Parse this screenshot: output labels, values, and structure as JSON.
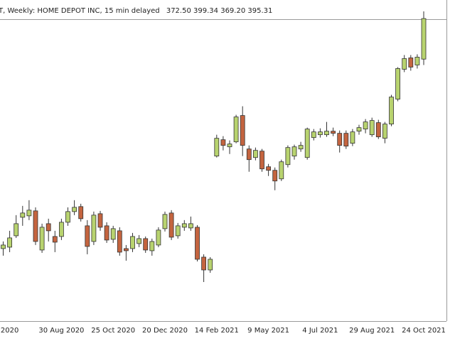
{
  "header": {
    "title": "T, Weekly:  HOME DEPOT INC, 15 min delayed",
    "ohlc": [
      "372.50",
      "399.34",
      "369.20",
      "395.31"
    ]
  },
  "chart_data": {
    "type": "candlestick",
    "categories": [
      null,
      "2020",
      null,
      null,
      null,
      null,
      null,
      null,
      null,
      "30 Aug 2020",
      null,
      null,
      null,
      null,
      null,
      null,
      null,
      "25 Oct 2020",
      null,
      null,
      null,
      null,
      null,
      null,
      null,
      "20 Dec 2020",
      null,
      null,
      null,
      null,
      null,
      null,
      null,
      "14 Feb 2021",
      null,
      null,
      null,
      null,
      null,
      null,
      null,
      "9 May 2021",
      null,
      null,
      null,
      null,
      null,
      null,
      null,
      "4 Jul 2021",
      null,
      null,
      null,
      null,
      null,
      null,
      null,
      "29 Aug 2021",
      null,
      null,
      null,
      null,
      null,
      null,
      null,
      "24 Oct 2021"
    ],
    "up_color": "#b8d36f",
    "down_color": "#c4643f",
    "outline_color": "#333333",
    "open": [
      266,
      266.8,
      273.2,
      283.6,
      284.4,
      287.2,
      265.2,
      280,
      272.8,
      272.8,
      280.8,
      286.8,
      289.6,
      278.8,
      270,
      285.6,
      278.8,
      271.2,
      276,
      266,
      266,
      268.8,
      271.6,
      264.8,
      268,
      277.2,
      286,
      273.2,
      278,
      277.6,
      278,
      261.2,
      254,
      318,
      327.2,
      323.2,
      326,
      340.8,
      322,
      317.2,
      320.8,
      312,
      310,
      305.2,
      313.2,
      318,
      322,
      317.2,
      328.4,
      330,
      330,
      332,
      330.8,
      330.8,
      325.2,
      332,
      333.2,
      330,
      336.8,
      328,
      336,
      350,
      366.8,
      373.2,
      369.2,
      372.5
    ],
    "high": [
      270,
      276,
      284.8,
      290,
      293.2,
      289.2,
      280,
      282.8,
      276,
      282.8,
      289.2,
      293.2,
      291.2,
      282,
      286.8,
      287.2,
      280.8,
      278.8,
      278,
      268,
      274.8,
      273.6,
      272.8,
      271.6,
      278,
      286.8,
      287.6,
      280.4,
      282,
      284,
      279.2,
      262.8,
      261.2,
      330,
      329.2,
      326.8,
      341.2,
      346,
      324,
      322.8,
      322,
      313.6,
      311.6,
      316,
      324,
      324.4,
      326,
      334,
      333.2,
      333.6,
      337.2,
      334,
      332.4,
      332.4,
      333.2,
      335.6,
      338.8,
      339.6,
      338.4,
      337.2,
      352.4,
      368,
      374.8,
      374.8,
      375.2,
      399.34
    ],
    "low": [
      262,
      264,
      272,
      278.8,
      282,
      268,
      263.6,
      270,
      264,
      270.8,
      278.8,
      284.8,
      281.2,
      262.8,
      268,
      276,
      269.2,
      269.2,
      262,
      259.2,
      264,
      266.8,
      263.6,
      262,
      266.8,
      275.6,
      270.8,
      271.6,
      276,
      276,
      258.8,
      247.2,
      252.4,
      317.2,
      321.2,
      319.2,
      325.2,
      318,
      309.2,
      315.6,
      309.2,
      306.8,
      298.8,
      304,
      311.6,
      316,
      320.4,
      316,
      326.8,
      328.4,
      328.8,
      329.2,
      320,
      322,
      323.6,
      330,
      330.8,
      328.8,
      327.6,
      325.2,
      334.8,
      348.8,
      365.2,
      366,
      367.2,
      369.2
    ],
    "close": [
      268,
      272,
      280,
      286,
      287.6,
      270,
      278,
      276,
      269.6,
      280.8,
      286.8,
      289.2,
      282.8,
      267.2,
      284.8,
      278,
      270.8,
      277.2,
      264,
      264.8,
      272.8,
      271.6,
      265.2,
      270,
      276.4,
      285.2,
      272.4,
      278.8,
      280,
      280,
      260,
      254,
      260,
      328,
      324,
      324.8,
      340,
      324,
      316,
      321.2,
      310.8,
      310,
      304,
      314.8,
      322.8,
      323.2,
      324,
      333.2,
      331.6,
      331.6,
      332,
      330.8,
      324,
      323.6,
      331.6,
      334,
      337.2,
      338,
      328.8,
      336,
      351.2,
      367.2,
      372.8,
      368,
      373.6,
      395.31
    ]
  }
}
